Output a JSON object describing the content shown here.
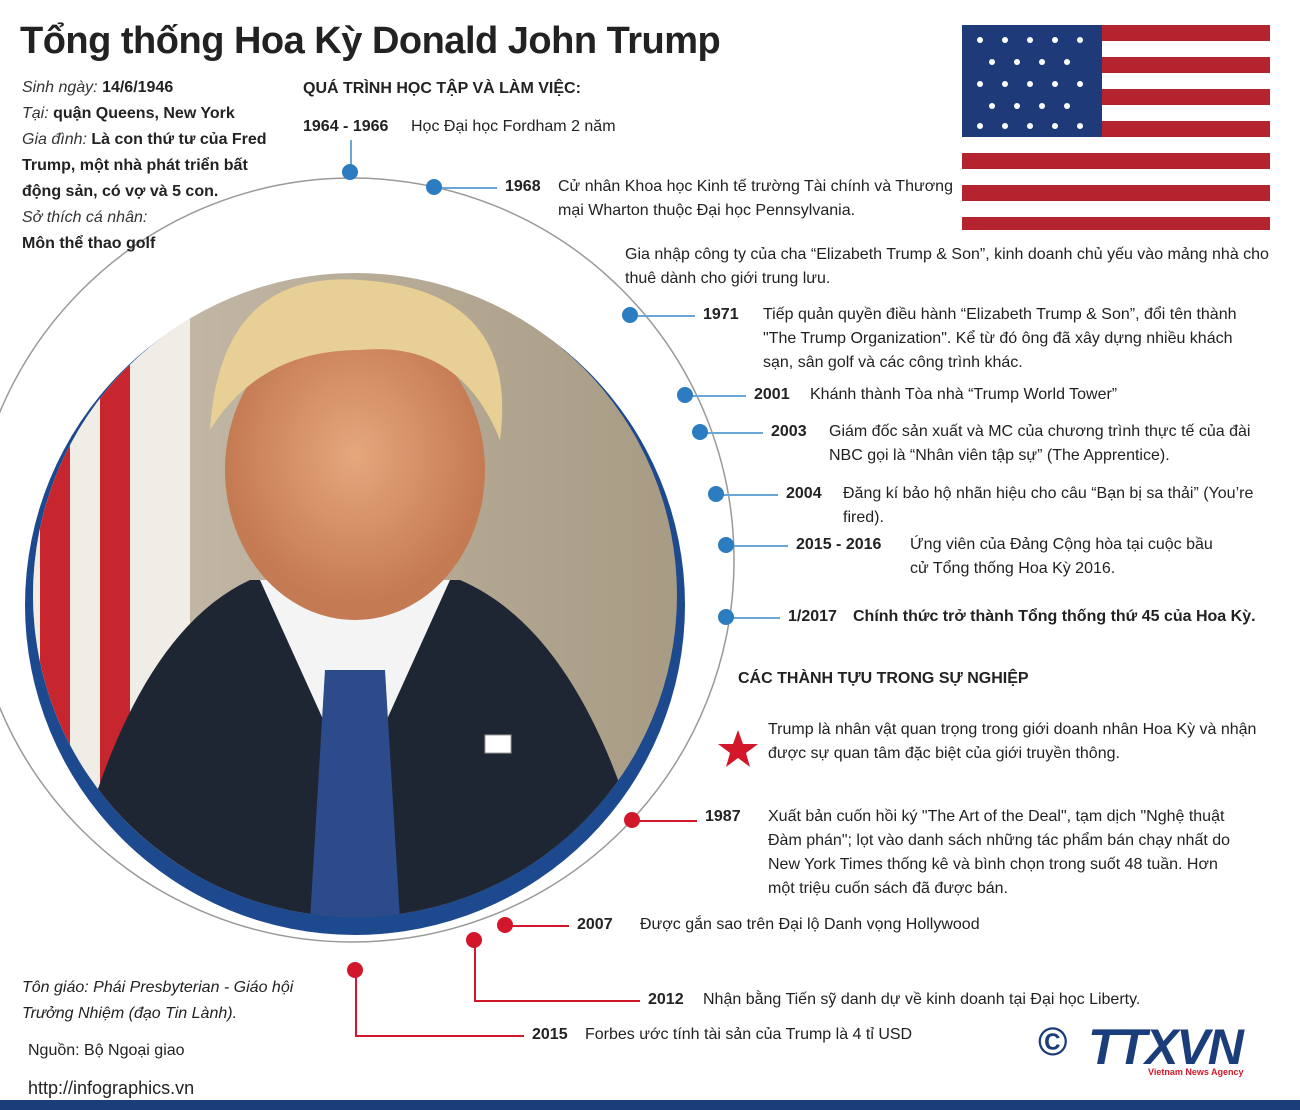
{
  "title": "Tổng thống Hoa Kỳ Donald John Trump",
  "profile": [
    {
      "label": "Sinh ngày:",
      "value": "14/6/1946"
    },
    {
      "label": "Tại:",
      "value": "quận Queens, New York"
    },
    {
      "label": "Gia đình:",
      "value": "Là con thứ tư của Fred Trump, một nhà phát triển bất động sản, có vợ và 5 con."
    },
    {
      "label": "Sở thích cá nhân:",
      "value": "Môn thể thao golf"
    }
  ],
  "career": {
    "heading": "QUÁ TRÌNH HỌC TẬP VÀ LÀM VIỆC:",
    "events": [
      {
        "year": "1964 - 1966",
        "text": "Học Đại học Fordham 2 năm"
      },
      {
        "year": "1968",
        "text": "Cử nhân Khoa học Kinh tế trường Tài chính và Thương mại Wharton thuộc Đại học Pennsylvania."
      },
      {
        "text": "Gia nhập công ty của cha “Elizabeth Trump & Son”, kinh doanh chủ yếu vào mảng nhà cho thuê dành cho giới trung lưu."
      },
      {
        "year": "1971",
        "text": "Tiếp quản quyền điều hành “Elizabeth Trump & Son”, đổi tên thành \"The Trump Organization\". Kể từ đó ông đã xây dựng nhiều khách sạn, sân golf và các công trình khác."
      },
      {
        "year": "2001",
        "text": "Khánh thành  Tòa nhà “Trump World Tower”"
      },
      {
        "year": "2003",
        "text": "Giám đốc sản xuất và MC của chương trình thực tế của đài NBC gọi là “Nhân viên tập sự” (The Apprentice)."
      },
      {
        "year": "2004",
        "text": "Đăng kí bảo hộ nhãn hiệu cho câu “Bạn bị sa thải” (You’re fired)."
      },
      {
        "year": "2015 - 2016",
        "text": "Ứng viên của Đảng Cộng hòa tại cuộc bầu cử Tổng thống Hoa Kỳ 2016."
      },
      {
        "year": "1/2017",
        "text": "Chính thức trở thành Tổng thống thứ 45 của Hoa Kỳ."
      }
    ]
  },
  "achievements": {
    "heading": "CÁC THÀNH TỰU TRONG SỰ NGHIỆP",
    "items": [
      {
        "text": "Trump là nhân vật quan trọng trong giới doanh nhân Hoa Kỳ và nhận được sự quan tâm đặc biệt của giới truyền thông."
      },
      {
        "year": "1987",
        "text": "Xuất bản cuốn hồi ký \"The Art of the Deal\", tạm dịch \"Nghệ thuật Đàm phán\"; lọt vào danh sách những tác phẩm bán chạy nhất do New York Times thống kê và bình chọn trong suốt 48 tuần. Hơn một triệu cuốn sách đã được bán."
      },
      {
        "year": "2007",
        "text": "Được gắn sao trên Đại lộ Danh vọng Hollywood"
      },
      {
        "year": "2012",
        "text": "Nhận bằng Tiến sỹ danh dự về kinh doanh tại Đại học Liberty."
      },
      {
        "year": "2015",
        "text": "Forbes ước tính tài sản của Trump là 4 tỉ USD"
      }
    ]
  },
  "religion": {
    "label": "Tôn giáo:",
    "value": "Phái Presbyterian - Giáo hội Trưởng Nhiệm (đạo Tin Lành)."
  },
  "source": "Nguồn: Bộ Ngoại giao",
  "url": "http://infographics.vn",
  "logo": {
    "mark": "©",
    "name": "TTXVN",
    "tagline": "Vietnam News Agency"
  }
}
